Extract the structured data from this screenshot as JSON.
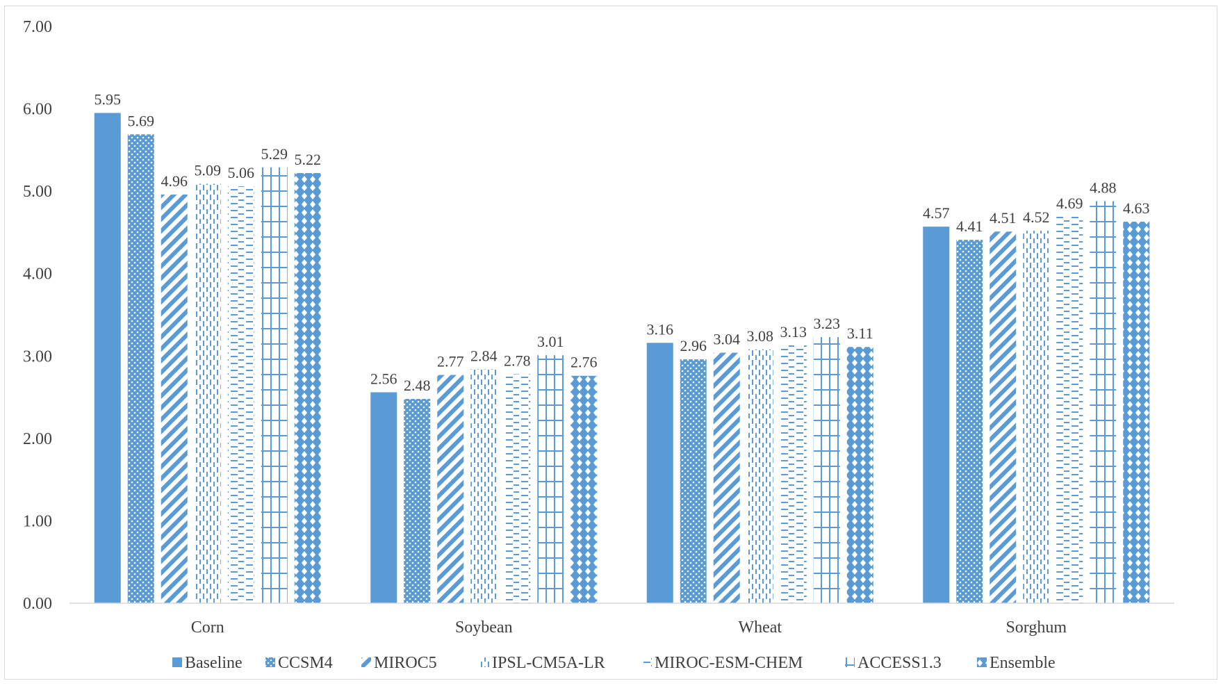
{
  "chart_data": {
    "type": "bar",
    "title": "",
    "xlabel": "",
    "ylabel": "",
    "ylim": [
      0,
      7
    ],
    "yticks": [
      "0.00",
      "1.00",
      "2.00",
      "3.00",
      "4.00",
      "5.00",
      "6.00",
      "7.00"
    ],
    "grid": false,
    "legend_position": "bottom",
    "categories": [
      "Corn",
      "Soybean",
      "Wheat",
      "Sorghum"
    ],
    "series": [
      {
        "name": "Baseline",
        "values": [
          5.95,
          2.56,
          3.16,
          4.57
        ],
        "labels": [
          "5.95",
          "2.56",
          "3.16",
          "4.57"
        ]
      },
      {
        "name": "CCSM4",
        "values": [
          5.69,
          2.48,
          2.96,
          4.41
        ],
        "labels": [
          "5.69",
          "2.48",
          "2.96",
          "4.41"
        ]
      },
      {
        "name": "MIROC5",
        "values": [
          4.96,
          2.77,
          3.04,
          4.51
        ],
        "labels": [
          "4.96",
          "2.77",
          "3.04",
          "4.51"
        ]
      },
      {
        "name": "IPSL-CM5A-LR",
        "values": [
          5.09,
          2.84,
          3.08,
          4.52
        ],
        "labels": [
          "5.09",
          "2.84",
          "3.08",
          "4.52"
        ]
      },
      {
        "name": "MIROC-ESM-CHEM",
        "values": [
          5.06,
          2.78,
          3.13,
          4.69
        ],
        "labels": [
          "5.06",
          "2.78",
          "3.13",
          "4.69"
        ]
      },
      {
        "name": "ACCESS1.3",
        "values": [
          5.29,
          3.01,
          3.23,
          4.88
        ],
        "labels": [
          "5.29",
          "3.01",
          "3.23",
          "4.88"
        ]
      },
      {
        "name": "Ensemble",
        "values": [
          5.22,
          2.76,
          3.11,
          4.63
        ],
        "labels": [
          "5.22",
          "2.76",
          "3.11",
          "4.63"
        ]
      }
    ]
  },
  "colors": {
    "bar": "#5b9bd5",
    "axis": "#d9d9d9",
    "text": "#404040"
  }
}
